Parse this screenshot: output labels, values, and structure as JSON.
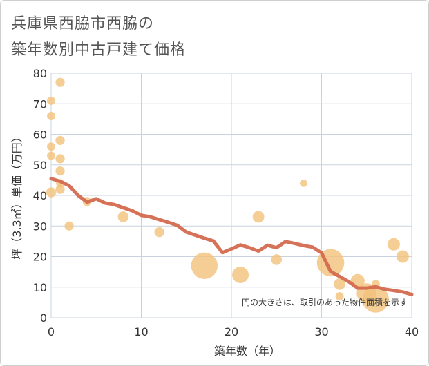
{
  "title_line1": "兵庫県西脇市西脇の",
  "title_line2": "築年数別中古戸建て価格",
  "chart_data": {
    "type": "scatter",
    "title": "兵庫県西脇市西脇の築年数別中古戸建て価格",
    "xlabel": "築年数（年）",
    "ylabel": "坪（3.3㎡）単価（万円）",
    "xlim": [
      0,
      40
    ],
    "ylim": [
      0,
      80
    ],
    "xticks": [
      0,
      10,
      20,
      30,
      40
    ],
    "yticks": [
      0,
      10,
      20,
      30,
      40,
      50,
      60,
      70,
      80
    ],
    "grid": true,
    "bubble_color": "#f2c27a",
    "line_color": "#d46a4f",
    "note": "円の大きさは、取引のあった物件面積を示す",
    "points": [
      {
        "x": 0,
        "y": 71,
        "size": 1
      },
      {
        "x": 0,
        "y": 66,
        "size": 1
      },
      {
        "x": 0,
        "y": 56,
        "size": 1
      },
      {
        "x": 0,
        "y": 53,
        "size": 1
      },
      {
        "x": 0,
        "y": 41,
        "size": 1.2
      },
      {
        "x": 1,
        "y": 77,
        "size": 1.1
      },
      {
        "x": 1,
        "y": 58,
        "size": 1.1
      },
      {
        "x": 1,
        "y": 52,
        "size": 1.1
      },
      {
        "x": 1,
        "y": 48,
        "size": 1.1
      },
      {
        "x": 1,
        "y": 44,
        "size": 1
      },
      {
        "x": 1,
        "y": 42,
        "size": 1.1
      },
      {
        "x": 2,
        "y": 30,
        "size": 1.1
      },
      {
        "x": 4,
        "y": 38,
        "size": 1.1
      },
      {
        "x": 8,
        "y": 33,
        "size": 1.3
      },
      {
        "x": 12,
        "y": 28,
        "size": 1.2
      },
      {
        "x": 17,
        "y": 17,
        "size": 3.2
      },
      {
        "x": 21,
        "y": 14,
        "size": 2
      },
      {
        "x": 23,
        "y": 33,
        "size": 1.4
      },
      {
        "x": 25,
        "y": 19,
        "size": 1.3
      },
      {
        "x": 28,
        "y": 44,
        "size": 0.9
      },
      {
        "x": 31,
        "y": 18,
        "size": 3.3
      },
      {
        "x": 32,
        "y": 11,
        "size": 1.4
      },
      {
        "x": 32,
        "y": 7,
        "size": 1
      },
      {
        "x": 34,
        "y": 12,
        "size": 1.7
      },
      {
        "x": 35,
        "y": 8,
        "size": 2.4
      },
      {
        "x": 36,
        "y": 11,
        "size": 1
      },
      {
        "x": 36,
        "y": 6,
        "size": 3.2
      },
      {
        "x": 38,
        "y": 24,
        "size": 1.5
      },
      {
        "x": 39,
        "y": 20,
        "size": 1.5
      }
    ],
    "trend": {
      "x": [
        0,
        1,
        2,
        3,
        4,
        5,
        6,
        7,
        8,
        9,
        10,
        11,
        12,
        13,
        14,
        15,
        16,
        17,
        18,
        19,
        20,
        21,
        22,
        23,
        24,
        25,
        26,
        27,
        28,
        29,
        30,
        31,
        32,
        33,
        34,
        35,
        36,
        37,
        38,
        39,
        40
      ],
      "y": [
        45.5,
        44.6,
        43.2,
        40,
        37.8,
        38.9,
        37.5,
        37,
        36,
        35,
        33.5,
        33,
        32.1,
        31.2,
        30.2,
        28,
        27,
        26,
        25.1,
        21.3,
        22.5,
        23.8,
        22.9,
        21.8,
        23.7,
        22.9,
        24.9,
        24.3,
        23.6,
        23.1,
        21.2,
        15.1,
        13.5,
        11.8,
        9.7,
        9.7,
        10.1,
        9.3,
        8.9,
        8.4,
        7.6
      ]
    }
  }
}
